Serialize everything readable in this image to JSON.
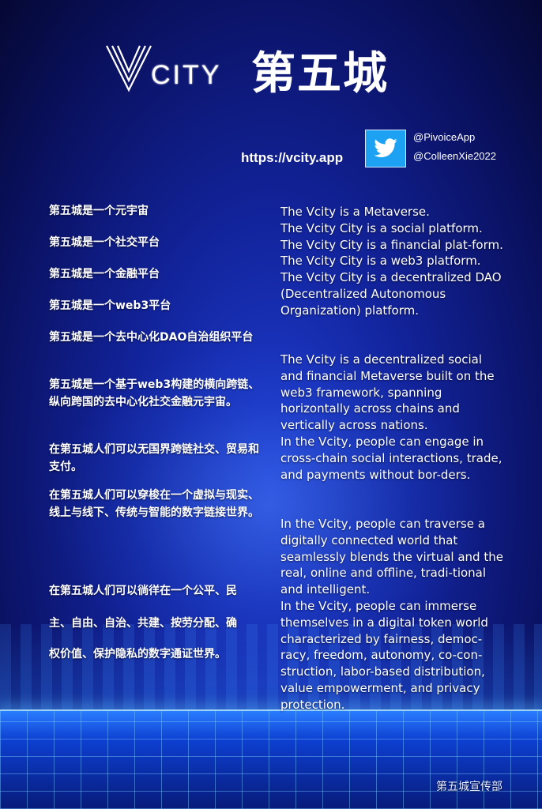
{
  "header": {
    "logo_word": "CITY",
    "title_cn": "第五城",
    "website": "https://vcity.app",
    "twitter_handles": [
      "@PivoiceApp",
      "@ColleenXie2022"
    ]
  },
  "chinese_paragraphs": [
    "第五城是一个元宇宙",
    "第五城是一个社交平台",
    "第五城是一个金融平台",
    "第五城是一个web3平台",
    "第五城是一个去中心化DAO自治组织平台",
    "第五城是一个基于web3构建的横向跨链、纵向跨国的去中心化社交金融元宇宙。",
    "在第五城人们可以无国界跨链社交、贸易和支付。",
    "在第五城人们可以穿梭在一个虚拟与现实、线上与线下、传统与智能的数字链接世界。",
    "在第五城人们可以徜徉在一个公平、民",
    "主、自由、自治、共建、按劳分配、确",
    "权价值、保护隐私的数字通证世界。"
  ],
  "english_paragraphs": [
    "The Vcity is a Metaverse.\nThe Vcity City is a social platform.\nThe Vcity City is a financial plat-form.\nThe Vcity City is a web3 platform.\nThe Vcity City is a decentralized DAO (Decentralized Autonomous Organization) platform.",
    "The Vcity  is a decentralized social and financial Metaverse built on the web3 framework, spanning horizontally across chains and vertically across nations.\nIn the Vcity, people can engage in cross-chain social interactions, trade, and payments without bor-ders.",
    "In the Vcity, people can traverse a digitally connected world that seamlessly blends the virtual and the real, online and offline, tradi-tional and intelligent.\nIn the Vcity, people can immerse themselves in a digital token world characterized by fairness, democ-racy, freedom, autonomy, co-con-struction, labor-based distribution, value empowerment, and privacy protection."
  ],
  "footer": {
    "department": "第五城宣传部"
  },
  "colors": {
    "background_deep": "#0a1160",
    "background_mid": "#1f3fd6",
    "twitter_blue": "#1da1f2",
    "text": "#ffffff"
  },
  "icons": [
    "v-logo-icon",
    "twitter-bird-icon"
  ]
}
